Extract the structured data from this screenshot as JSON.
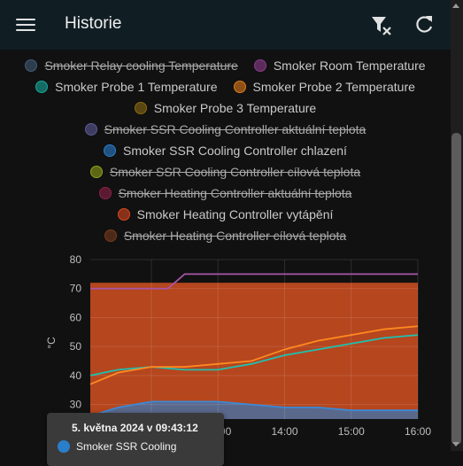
{
  "header": {
    "title": "Historie",
    "menu_icon": "hamburger-menu-icon",
    "filter_icon": "filter-remove-icon",
    "refresh_icon": "refresh-icon",
    "background": "#101e24"
  },
  "legend": {
    "rows": [
      [
        {
          "label": "Smoker Relay cooling Temperature",
          "color": "#435b78",
          "hidden": true
        },
        {
          "label": "Smoker Room Temperature",
          "color": "#8c3d8e",
          "hidden": false
        }
      ],
      [
        {
          "label": "Smoker Probe 1 Temperature",
          "color": "#18a89c",
          "hidden": false
        },
        {
          "label": "Smoker Probe 2 Temperature",
          "color": "#e07b1a",
          "hidden": false
        }
      ],
      [
        {
          "label": "Smoker Probe 3 Temperature",
          "color": "#8a6b10",
          "hidden": false
        }
      ],
      [
        {
          "label": "Smoker SSR Cooling Controller aktuální teplota",
          "color": "#5d5a98",
          "hidden": true
        }
      ],
      [
        {
          "label": "Smoker SSR Cooling Controller chlazení",
          "color": "#2a7fcb",
          "hidden": false
        }
      ],
      [
        {
          "label": "Smoker SSR Cooling Controller cílová teplota",
          "color": "#8fa21a",
          "hidden": true
        }
      ],
      [
        {
          "label": "Smoker Heating Controller aktuální teplota",
          "color": "#8c2247",
          "hidden": true
        }
      ],
      [
        {
          "label": "Smoker Heating Controller vytápění",
          "color": "#d9481f",
          "hidden": false
        }
      ],
      [
        {
          "label": "Smoker Heating Controller cílová teplota",
          "color": "#7a3a1e",
          "hidden": true
        }
      ]
    ]
  },
  "chart_data": {
    "type": "line",
    "ylabel": "°C",
    "ylim": [
      25,
      80
    ],
    "yticks": [
      "80",
      "70",
      "60",
      "50",
      "40",
      "30"
    ],
    "xticks": [
      "12:00",
      "13:00",
      "14:00",
      "15:00",
      "16:00"
    ],
    "x_range": [
      "11:05",
      "16:00"
    ],
    "grid": true,
    "series": [
      {
        "name": "Smoker Room Temperature",
        "color": "#a855a8",
        "x": [
          "11:05",
          "11:30",
          "12:00",
          "12:15",
          "12:30",
          "13:00",
          "13:30",
          "14:00",
          "14:30",
          "15:00",
          "15:30",
          "16:00"
        ],
        "y": [
          70,
          70,
          70,
          70,
          75,
          75,
          75,
          75,
          75,
          75,
          75,
          75
        ]
      },
      {
        "name": "Smoker Probe 1 Temperature",
        "color": "#20c0b0",
        "x": [
          "11:05",
          "11:30",
          "12:00",
          "12:30",
          "13:00",
          "13:30",
          "14:00",
          "14:30",
          "15:00",
          "15:30",
          "16:00"
        ],
        "y": [
          40,
          42,
          43,
          42,
          42,
          44,
          47,
          49,
          51,
          53,
          54
        ]
      },
      {
        "name": "Smoker Probe 2 Temperature",
        "color": "#ff8a20",
        "x": [
          "11:05",
          "11:30",
          "12:00",
          "12:30",
          "13:00",
          "13:30",
          "14:00",
          "14:30",
          "15:00",
          "15:30",
          "16:00"
        ],
        "y": [
          37,
          41,
          43,
          43,
          44,
          45,
          49,
          52,
          54,
          56,
          57
        ]
      },
      {
        "name": "Smoker SSR Cooling Controller chlazení",
        "color": "#3a8ad8",
        "x": [
          "11:05",
          "11:30",
          "12:00",
          "12:30",
          "13:00",
          "13:30",
          "14:00",
          "14:30",
          "15:00",
          "15:30",
          "16:00"
        ],
        "y": [
          26,
          29,
          31,
          31,
          31,
          30,
          29,
          29,
          28,
          28,
          28
        ]
      },
      {
        "name": "Smoker Heating Controller vytápění",
        "color": "#b5461e",
        "x": [
          "11:05",
          "16:00"
        ],
        "y": [
          72,
          72
        ]
      }
    ]
  },
  "tooltip": {
    "time": "5. května 2024 v 09:43:12",
    "series": "Smoker SSR Cooling",
    "color": "#2a7fcb"
  }
}
